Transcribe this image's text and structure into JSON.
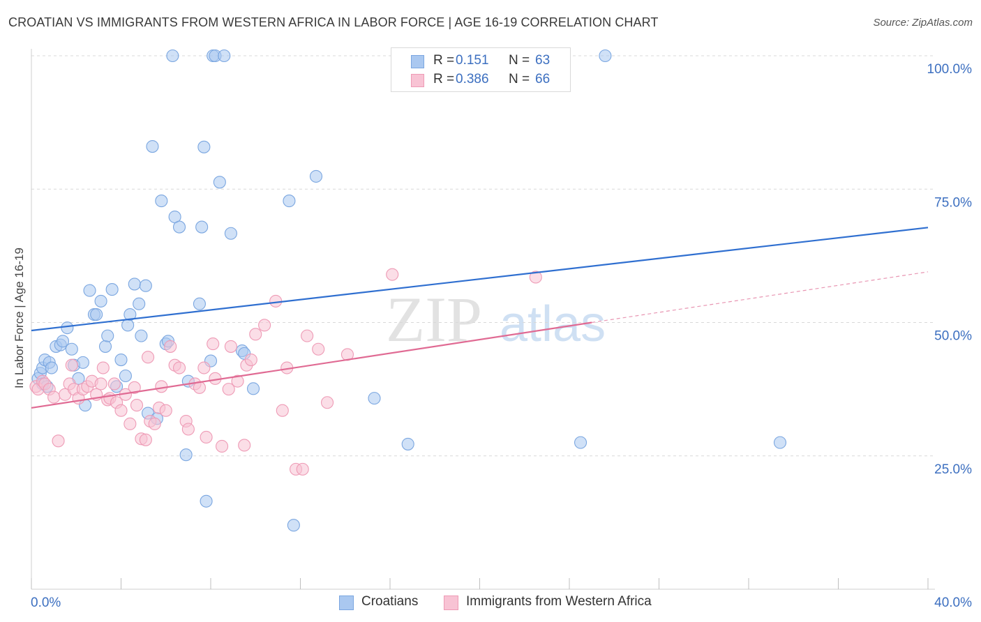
{
  "header": {
    "title": "CROATIAN VS IMMIGRANTS FROM WESTERN AFRICA IN LABOR FORCE | AGE 16-19 CORRELATION CHART",
    "source": "Source: ZipAtlas.com"
  },
  "watermark": {
    "zip": "ZIP",
    "atlas": "atlas"
  },
  "legend": {
    "r_label": "R =",
    "n_label": "N =",
    "rows": [
      {
        "r": "0.151",
        "n": "63",
        "color": "#aac8f0",
        "border": "#7aa6e0"
      },
      {
        "r": "0.386",
        "n": "66",
        "color": "#f8c3d4",
        "border": "#ee9ab5"
      }
    ]
  },
  "bottom_legend": {
    "items": [
      {
        "label": "Croatians",
        "color": "#aac8f0",
        "border": "#7aa6e0"
      },
      {
        "label": "Immigrants from Western Africa",
        "color": "#f8c3d4",
        "border": "#ee9ab5"
      }
    ]
  },
  "chart_data": {
    "type": "scatter",
    "title": "CROATIAN VS IMMIGRANTS FROM WESTERN AFRICA IN LABOR FORCE | AGE 16-19 CORRELATION CHART",
    "xlabel": "",
    "ylabel": "In Labor Force | Age 16-19",
    "xlim": [
      0,
      40
    ],
    "ylim": [
      0,
      105
    ],
    "x_tick_labels": [
      {
        "value": 0,
        "label": "0.0%"
      },
      {
        "value": 40,
        "label": "40.0%"
      }
    ],
    "y_tick_labels": [
      {
        "value": 25,
        "label": "25.0%"
      },
      {
        "value": 50,
        "label": "50.0%"
      },
      {
        "value": 75,
        "label": "75.0%"
      },
      {
        "value": 100,
        "label": "100.0%"
      }
    ],
    "y_gridlines": [
      25,
      50,
      75,
      100
    ],
    "x_minor_ticks": [
      0,
      4,
      8,
      12,
      16,
      20,
      24,
      28,
      32,
      36,
      40
    ],
    "legend_position": "top-center",
    "series": [
      {
        "name": "Croatians",
        "color": "#7aa6e0",
        "fill": "#aac8f0",
        "trend": {
          "x": [
            0,
            40
          ],
          "y": [
            48.5,
            67.8
          ],
          "color": "#2f6fd0"
        },
        "points": [
          [
            0.3,
            39.5
          ],
          [
            0.4,
            40.5
          ],
          [
            0.5,
            38.5
          ],
          [
            0.5,
            41.5
          ],
          [
            0.6,
            43
          ],
          [
            0.7,
            38
          ],
          [
            0.8,
            42.5
          ],
          [
            0.9,
            41.5
          ],
          [
            1.1,
            45.5
          ],
          [
            1.3,
            45.8
          ],
          [
            1.4,
            46.5
          ],
          [
            1.6,
            49
          ],
          [
            1.8,
            45
          ],
          [
            1.9,
            42
          ],
          [
            2.1,
            39.5
          ],
          [
            2.3,
            42.5
          ],
          [
            2.4,
            34.5
          ],
          [
            2.6,
            56
          ],
          [
            2.8,
            51.5
          ],
          [
            2.9,
            51.5
          ],
          [
            3.1,
            54
          ],
          [
            3.3,
            45.5
          ],
          [
            3.4,
            47.5
          ],
          [
            3.6,
            56.2
          ],
          [
            3.8,
            38
          ],
          [
            4.0,
            43
          ],
          [
            4.2,
            40
          ],
          [
            4.3,
            49.5
          ],
          [
            4.4,
            51.5
          ],
          [
            4.6,
            57.2
          ],
          [
            4.8,
            53.5
          ],
          [
            4.9,
            47.5
          ],
          [
            5.1,
            56.9
          ],
          [
            5.2,
            33
          ],
          [
            5.4,
            83
          ],
          [
            5.6,
            32
          ],
          [
            5.8,
            72.8
          ],
          [
            6.0,
            46
          ],
          [
            6.1,
            46.5
          ],
          [
            6.3,
            100
          ],
          [
            6.4,
            69.8
          ],
          [
            6.6,
            67.9
          ],
          [
            6.9,
            25.2
          ],
          [
            7.0,
            39
          ],
          [
            7.5,
            53.5
          ],
          [
            7.6,
            67.9
          ],
          [
            7.7,
            82.9
          ],
          [
            7.8,
            16.5
          ],
          [
            8.0,
            42.8
          ],
          [
            8.1,
            100
          ],
          [
            8.2,
            100
          ],
          [
            8.4,
            76.3
          ],
          [
            8.6,
            100
          ],
          [
            8.9,
            66.7
          ],
          [
            9.4,
            44.7
          ],
          [
            9.5,
            44.2
          ],
          [
            9.9,
            37.6
          ],
          [
            11.5,
            72.8
          ],
          [
            11.7,
            12
          ],
          [
            12.7,
            77.4
          ],
          [
            15.3,
            35.8
          ],
          [
            16.8,
            27.2
          ],
          [
            24.5,
            27.5
          ],
          [
            25.6,
            100
          ],
          [
            33.4,
            27.5
          ]
        ]
      },
      {
        "name": "Immigrants from Western Africa",
        "color": "#ee9ab5",
        "fill": "#f8c3d4",
        "trend": {
          "x": [
            0,
            25
          ],
          "y": [
            34,
            50
          ],
          "color": "#e06a93"
        },
        "trend_dashed": {
          "x": [
            25,
            40
          ],
          "y": [
            50,
            59.5
          ],
          "color": "#e895b2"
        },
        "points": [
          [
            0.2,
            38
          ],
          [
            0.3,
            37.5
          ],
          [
            0.5,
            39
          ],
          [
            0.6,
            38.5
          ],
          [
            0.8,
            37.5
          ],
          [
            1.0,
            36
          ],
          [
            1.2,
            27.8
          ],
          [
            1.5,
            36.5
          ],
          [
            1.7,
            38.5
          ],
          [
            1.8,
            42
          ],
          [
            1.9,
            37.5
          ],
          [
            2.1,
            35.8
          ],
          [
            2.3,
            37.5
          ],
          [
            2.5,
            38
          ],
          [
            2.7,
            39
          ],
          [
            2.9,
            36.5
          ],
          [
            3.1,
            38.5
          ],
          [
            3.2,
            41.5
          ],
          [
            3.4,
            35.5
          ],
          [
            3.5,
            35.8
          ],
          [
            3.7,
            38.5
          ],
          [
            3.8,
            35
          ],
          [
            4.0,
            33.5
          ],
          [
            4.2,
            36.5
          ],
          [
            4.4,
            31
          ],
          [
            4.6,
            37.8
          ],
          [
            4.7,
            34.5
          ],
          [
            4.9,
            28.2
          ],
          [
            5.1,
            28
          ],
          [
            5.2,
            43.5
          ],
          [
            5.3,
            31.5
          ],
          [
            5.5,
            31
          ],
          [
            5.7,
            34
          ],
          [
            5.8,
            38
          ],
          [
            6.0,
            33.5
          ],
          [
            6.2,
            45.5
          ],
          [
            6.4,
            42
          ],
          [
            6.6,
            41.5
          ],
          [
            6.9,
            31.5
          ],
          [
            7.0,
            30
          ],
          [
            7.3,
            38.5
          ],
          [
            7.5,
            37.8
          ],
          [
            7.7,
            41.5
          ],
          [
            7.8,
            28.5
          ],
          [
            8.1,
            46
          ],
          [
            8.2,
            39.5
          ],
          [
            8.5,
            26.8
          ],
          [
            8.8,
            37.5
          ],
          [
            8.9,
            45.5
          ],
          [
            9.2,
            39
          ],
          [
            9.5,
            27
          ],
          [
            9.6,
            42
          ],
          [
            9.8,
            43
          ],
          [
            10.0,
            47.8
          ],
          [
            10.4,
            49.5
          ],
          [
            10.9,
            54
          ],
          [
            11.2,
            33.5
          ],
          [
            11.4,
            41.5
          ],
          [
            11.8,
            22.5
          ],
          [
            12.1,
            22.5
          ],
          [
            12.3,
            47.5
          ],
          [
            12.8,
            45
          ],
          [
            13.2,
            35
          ],
          [
            14.1,
            44
          ],
          [
            16.1,
            59
          ],
          [
            22.5,
            58.5
          ]
        ]
      }
    ]
  }
}
